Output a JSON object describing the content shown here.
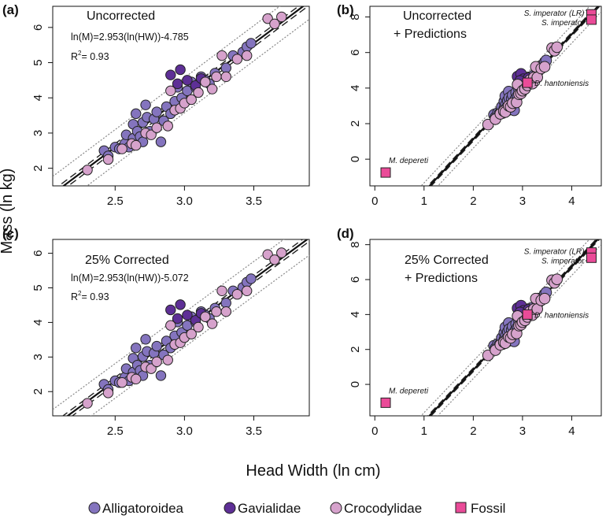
{
  "figure": {
    "xlabel": "Head Width (ln cm)",
    "ylabel": "Mass (ln kg)",
    "legend": [
      {
        "label": "Alligatoroidea",
        "color": "#8474be",
        "shape": "circle"
      },
      {
        "label": "Gavialidae",
        "color": "#5e2f96",
        "shape": "circle"
      },
      {
        "label": "Crocodylidae",
        "color": "#d6a2cc",
        "shape": "circle"
      },
      {
        "label": "Fossil",
        "color": "#ea4b98",
        "shape": "square"
      }
    ],
    "colors": {
      "Alligatoroidea": "#8474be",
      "Gavialidae": "#5e2f96",
      "Crocodylidae": "#d6a2cc",
      "Fossil": "#ea4b98"
    }
  },
  "chart_data": [
    {
      "panel": "(a)",
      "type": "scatter",
      "title_lines": [
        "Uncorrected"
      ],
      "equation": "ln(M)=2.953(ln(HW))-4.785",
      "r2_label": "R",
      "r2_sup": "2",
      "r2_value": "= 0.93",
      "xlim": [
        2.05,
        3.9
      ],
      "ylim": [
        1.5,
        6.6
      ],
      "xticks": [
        2.5,
        3.0,
        3.5
      ],
      "xtick_labels": [
        "2.5",
        "3.0",
        "3.5"
      ],
      "yticks": [
        2,
        3,
        4,
        5,
        6
      ],
      "ytick_labels": [
        "2",
        "3",
        "4",
        "5",
        "6"
      ],
      "fit": {
        "slope": 2.953,
        "intercept": -4.785
      },
      "offset": 0,
      "points_fossil": []
    },
    {
      "panel": "(b)",
      "type": "scatter",
      "title_lines": [
        "Uncorrected",
        "+ Predictions"
      ],
      "xlim": [
        -0.1,
        4.6
      ],
      "ylim": [
        -1.5,
        8.6
      ],
      "xticks": [
        0,
        1,
        2,
        3,
        4
      ],
      "xtick_labels": [
        "0",
        "1",
        "2",
        "3",
        "4"
      ],
      "yticks": [
        0,
        2,
        4,
        6,
        8
      ],
      "ytick_labels": [
        "0",
        "2",
        "4",
        "6",
        "8"
      ],
      "fit": {
        "slope": 2.953,
        "intercept": -4.785
      },
      "offset": 0,
      "points_fossil": [
        {
          "label": "S. imperator (LR)",
          "x": 4.4,
          "y": 8.15
        },
        {
          "label": "S. imperator",
          "x": 4.4,
          "y": 7.85
        },
        {
          "label": "D. hantoniensis",
          "x": 3.1,
          "y": 4.3
        },
        {
          "label": "M. depereti",
          "x": 0.22,
          "y": -0.75
        }
      ]
    },
    {
      "panel": "(c)",
      "type": "scatter",
      "title_lines": [
        "25% Corrected"
      ],
      "equation": "ln(M)=2.953(ln(HW))-5.072",
      "r2_label": "R",
      "r2_sup": "2",
      "r2_value": "= 0.93",
      "xlim": [
        2.05,
        3.9
      ],
      "ylim": [
        1.3,
        6.4
      ],
      "xticks": [
        2.5,
        3.0,
        3.5
      ],
      "xtick_labels": [
        "2.5",
        "3.0",
        "3.5"
      ],
      "yticks": [
        2,
        3,
        4,
        5,
        6
      ],
      "ytick_labels": [
        "2",
        "3",
        "4",
        "5",
        "6"
      ],
      "fit": {
        "slope": 2.953,
        "intercept": -5.072
      },
      "offset": -0.287,
      "points_fossil": []
    },
    {
      "panel": "(d)",
      "type": "scatter",
      "title_lines": [
        "25% Corrected",
        "+ Predictions"
      ],
      "xlim": [
        -0.1,
        4.6
      ],
      "ylim": [
        -1.8,
        8.3
      ],
      "xticks": [
        0,
        1,
        2,
        3,
        4
      ],
      "xtick_labels": [
        "0",
        "1",
        "2",
        "3",
        "4"
      ],
      "yticks": [
        0,
        2,
        4,
        6,
        8
      ],
      "ytick_labels": [
        "0",
        "2",
        "4",
        "6",
        "8"
      ],
      "fit": {
        "slope": 2.953,
        "intercept": -5.072
      },
      "offset": -0.287,
      "points_fossil": [
        {
          "label": "S. imperator (LR)",
          "x": 4.4,
          "y": 7.55
        },
        {
          "label": "S. imperator",
          "x": 4.4,
          "y": 7.25
        },
        {
          "label": "D. hantoniensis",
          "x": 3.1,
          "y": 4.0
        },
        {
          "label": "M. depereti",
          "x": 0.22,
          "y": -1.05
        }
      ]
    }
  ],
  "extant_points": [
    {
      "g": "Alligatoroidea",
      "x": 2.42,
      "y": 2.5
    },
    {
      "g": "Alligatoroidea",
      "x": 2.45,
      "y": 2.35
    },
    {
      "g": "Alligatoroidea",
      "x": 2.5,
      "y": 2.6
    },
    {
      "g": "Alligatoroidea",
      "x": 2.53,
      "y": 2.55
    },
    {
      "g": "Alligatoroidea",
      "x": 2.57,
      "y": 2.7
    },
    {
      "g": "Alligatoroidea",
      "x": 2.58,
      "y": 2.95
    },
    {
      "g": "Alligatoroidea",
      "x": 2.6,
      "y": 2.6
    },
    {
      "g": "Alligatoroidea",
      "x": 2.63,
      "y": 2.85
    },
    {
      "g": "Alligatoroidea",
      "x": 2.63,
      "y": 3.25
    },
    {
      "g": "Alligatoroidea",
      "x": 2.65,
      "y": 3.55
    },
    {
      "g": "Alligatoroidea",
      "x": 2.66,
      "y": 3.05
    },
    {
      "g": "Alligatoroidea",
      "x": 2.68,
      "y": 2.9
    },
    {
      "g": "Alligatoroidea",
      "x": 2.7,
      "y": 3.3
    },
    {
      "g": "Alligatoroidea",
      "x": 2.7,
      "y": 2.75
    },
    {
      "g": "Alligatoroidea",
      "x": 2.72,
      "y": 3.8
    },
    {
      "g": "Alligatoroidea",
      "x": 2.73,
      "y": 3.45
    },
    {
      "g": "Alligatoroidea",
      "x": 2.75,
      "y": 3.05
    },
    {
      "g": "Alligatoroidea",
      "x": 2.78,
      "y": 3.4
    },
    {
      "g": "Alligatoroidea",
      "x": 2.8,
      "y": 3.6
    },
    {
      "g": "Alligatoroidea",
      "x": 2.83,
      "y": 2.75
    },
    {
      "g": "Alligatoroidea",
      "x": 2.85,
      "y": 3.35
    },
    {
      "g": "Alligatoroidea",
      "x": 2.87,
      "y": 3.75
    },
    {
      "g": "Alligatoroidea",
      "x": 2.9,
      "y": 3.55
    },
    {
      "g": "Alligatoroidea",
      "x": 2.93,
      "y": 3.9
    },
    {
      "g": "Alligatoroidea",
      "x": 2.95,
      "y": 4.3
    },
    {
      "g": "Alligatoroidea",
      "x": 2.98,
      "y": 4.0
    },
    {
      "g": "Alligatoroidea",
      "x": 3.02,
      "y": 4.2
    },
    {
      "g": "Alligatoroidea",
      "x": 3.05,
      "y": 4.45
    },
    {
      "g": "Alligatoroidea",
      "x": 3.08,
      "y": 4.3
    },
    {
      "g": "Alligatoroidea",
      "x": 3.12,
      "y": 4.6
    },
    {
      "g": "Alligatoroidea",
      "x": 3.15,
      "y": 4.5
    },
    {
      "g": "Alligatoroidea",
      "x": 3.18,
      "y": 4.4
    },
    {
      "g": "Alligatoroidea",
      "x": 3.22,
      "y": 4.7
    },
    {
      "g": "Alligatoroidea",
      "x": 3.3,
      "y": 4.85
    },
    {
      "g": "Alligatoroidea",
      "x": 3.35,
      "y": 5.2
    },
    {
      "g": "Alligatoroidea",
      "x": 3.42,
      "y": 5.3
    },
    {
      "g": "Alligatoroidea",
      "x": 3.45,
      "y": 5.45
    },
    {
      "g": "Alligatoroidea",
      "x": 3.48,
      "y": 5.55
    },
    {
      "g": "Gavialidae",
      "x": 2.9,
      "y": 4.65
    },
    {
      "g": "Gavialidae",
      "x": 2.97,
      "y": 4.8
    },
    {
      "g": "Gavialidae",
      "x": 3.02,
      "y": 4.5
    },
    {
      "g": "Gavialidae",
      "x": 3.08,
      "y": 4.35
    },
    {
      "g": "Gavialidae",
      "x": 3.12,
      "y": 4.55
    },
    {
      "g": "Gavialidae",
      "x": 2.95,
      "y": 4.4
    },
    {
      "g": "Crocodylidae",
      "x": 2.3,
      "y": 1.95
    },
    {
      "g": "Crocodylidae",
      "x": 2.45,
      "y": 2.25
    },
    {
      "g": "Crocodylidae",
      "x": 2.55,
      "y": 2.55
    },
    {
      "g": "Crocodylidae",
      "x": 2.62,
      "y": 2.7
    },
    {
      "g": "Crocodylidae",
      "x": 2.65,
      "y": 2.65
    },
    {
      "g": "Crocodylidae",
      "x": 2.72,
      "y": 3.0
    },
    {
      "g": "Crocodylidae",
      "x": 2.76,
      "y": 2.95
    },
    {
      "g": "Crocodylidae",
      "x": 2.8,
      "y": 3.15
    },
    {
      "g": "Crocodylidae",
      "x": 2.88,
      "y": 3.2
    },
    {
      "g": "Crocodylidae",
      "x": 2.9,
      "y": 4.2
    },
    {
      "g": "Crocodylidae",
      "x": 2.93,
      "y": 3.65
    },
    {
      "g": "Crocodylidae",
      "x": 2.97,
      "y": 3.7
    },
    {
      "g": "Crocodylidae",
      "x": 3.0,
      "y": 3.85
    },
    {
      "g": "Crocodylidae",
      "x": 3.05,
      "y": 3.95
    },
    {
      "g": "Crocodylidae",
      "x": 3.1,
      "y": 4.15
    },
    {
      "g": "Crocodylidae",
      "x": 3.15,
      "y": 4.45
    },
    {
      "g": "Crocodylidae",
      "x": 3.2,
      "y": 4.25
    },
    {
      "g": "Crocodylidae",
      "x": 3.23,
      "y": 4.6
    },
    {
      "g": "Crocodylidae",
      "x": 3.27,
      "y": 5.2
    },
    {
      "g": "Crocodylidae",
      "x": 3.3,
      "y": 4.6
    },
    {
      "g": "Crocodylidae",
      "x": 3.38,
      "y": 5.1
    },
    {
      "g": "Crocodylidae",
      "x": 3.45,
      "y": 5.2
    },
    {
      "g": "Crocodylidae",
      "x": 3.6,
      "y": 6.25
    },
    {
      "g": "Crocodylidae",
      "x": 3.65,
      "y": 6.1
    },
    {
      "g": "Crocodylidae",
      "x": 3.7,
      "y": 6.3
    }
  ]
}
